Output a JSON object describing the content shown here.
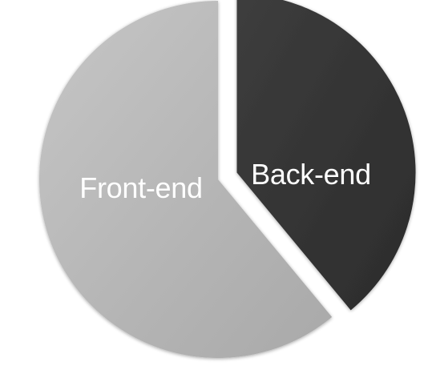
{
  "chart_data": {
    "type": "pie",
    "title": "",
    "slices": [
      {
        "label": "Front-end",
        "value": 61,
        "color": "#b9b9b9"
      },
      {
        "label": "Back-end",
        "value": 39,
        "color": "#383838",
        "exploded": true
      }
    ],
    "legend": "none",
    "labels": "inside"
  }
}
